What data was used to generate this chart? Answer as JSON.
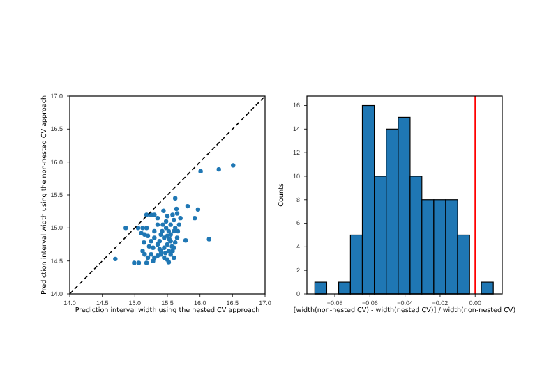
{
  "chart_data": [
    {
      "type": "scatter",
      "xlabel": "Prediction interval width using the nested CV approach",
      "ylabel": "Prediction interval width using the non-nested CV approach",
      "xlim": [
        14,
        17
      ],
      "ylim": [
        14,
        17
      ],
      "xticks": [
        {
          "value": 14,
          "label": "14.0"
        },
        {
          "value": 14.5,
          "label": "14.5"
        },
        {
          "value": 15,
          "label": "15.0"
        },
        {
          "value": 15.5,
          "label": "15.5"
        },
        {
          "value": 16,
          "label": "16.0"
        },
        {
          "value": 16.5,
          "label": "16.5"
        },
        {
          "value": 17,
          "label": "17.0"
        }
      ],
      "yticks": [
        {
          "value": 14,
          "label": "14.0"
        },
        {
          "value": 14.5,
          "label": "14.5"
        },
        {
          "value": 15,
          "label": "15.0"
        },
        {
          "value": 15.5,
          "label": "15.5"
        },
        {
          "value": 16,
          "label": "16.0"
        },
        {
          "value": 16.5,
          "label": "16.5"
        },
        {
          "value": 17,
          "label": "17.0"
        }
      ],
      "marker": "circle",
      "series": [
        {
          "type": "scatter",
          "color": "#1f77b4",
          "x": [
            16.51,
            16.29,
            16.01,
            15.62,
            15.81,
            15.97,
            15.64,
            15.44,
            15.92,
            14.86,
            16.14,
            15.78,
            14.7,
            14.99,
            15.06,
            15.18,
            15.18,
            15.25,
            15.3,
            15.35,
            15.5,
            15.58,
            15.6,
            15.55,
            15.48,
            15.52,
            15.1,
            15.15,
            15.2,
            15.3,
            15.35,
            15.4,
            15.45,
            15.5,
            15.55,
            15.55,
            15.5,
            15.45,
            15.4,
            15.35,
            15.28,
            15.22,
            15.12,
            15.15,
            15.2,
            15.25,
            15.3,
            15.35,
            15.4,
            15.45,
            15.5,
            15.52,
            15.55,
            15.58,
            15.6,
            15.62,
            15.65,
            15.6,
            15.62,
            15.68,
            15.7,
            15.65,
            15.25,
            15.3,
            15.38,
            15.42,
            15.05,
            15.12,
            15.18,
            15.28,
            15.6,
            15.52,
            15.47,
            15.57,
            15.53,
            15.43,
            15.48,
            15.38,
            15.66,
            15.14
          ],
          "values": [
            15.95,
            15.89,
            15.86,
            15.45,
            15.33,
            15.28,
            15.29,
            15.26,
            15.15,
            15.0,
            14.83,
            14.81,
            14.53,
            14.47,
            14.47,
            14.47,
            15.2,
            15.2,
            15.2,
            15.15,
            15.18,
            15.2,
            15.12,
            15.05,
            15.0,
            14.95,
            14.92,
            14.9,
            14.88,
            14.95,
            15.05,
            14.9,
            14.85,
            14.88,
            14.9,
            14.8,
            14.75,
            14.7,
            14.65,
            14.75,
            14.7,
            14.72,
            14.65,
            14.6,
            14.55,
            14.6,
            14.55,
            14.58,
            14.6,
            14.55,
            14.52,
            14.48,
            14.6,
            14.65,
            14.7,
            14.78,
            14.85,
            14.95,
            15.0,
            15.05,
            15.15,
            15.22,
            14.8,
            14.85,
            14.8,
            14.95,
            15.0,
            15.0,
            15.0,
            14.5,
            14.55,
            14.65,
            14.62,
            14.72,
            14.83,
            15.05,
            15.1,
            14.68,
            14.95,
            14.78
          ]
        },
        {
          "type": "line",
          "color": "#000000",
          "line_style": "dashed",
          "marker": "none",
          "x": [
            14,
            17
          ],
          "values": [
            14,
            17
          ]
        }
      ]
    },
    {
      "type": "histogram",
      "xlabel": "[width(non-nested CV) - width(nested CV)] / width(non-nested CV)",
      "ylabel": "Counts",
      "color": "#1f77b4",
      "bins": [
        -0.0914,
        -0.0846,
        -0.0778,
        -0.0711,
        -0.0643,
        -0.0575,
        -0.0507,
        -0.0439,
        -0.0371,
        -0.0304,
        -0.0236,
        -0.0168,
        -0.01,
        -0.0032,
        0.0035,
        0.0103
      ],
      "values": [
        1,
        0,
        1,
        5,
        16,
        10,
        14,
        15,
        10,
        8,
        8,
        8,
        5,
        0,
        1
      ],
      "xlim": [
        -0.0959,
        0.0154
      ],
      "ylim": [
        0,
        16.8
      ],
      "xticks": [
        {
          "value": -0.08,
          "label": "−0.08"
        },
        {
          "value": -0.06,
          "label": "−0.06"
        },
        {
          "value": -0.04,
          "label": "−0.04"
        },
        {
          "value": -0.02,
          "label": "−0.02"
        },
        {
          "value": 0,
          "label": "0.00"
        }
      ],
      "yticks": [
        0,
        2,
        4,
        6,
        8,
        10,
        12,
        14,
        16
      ],
      "ref_lines": [
        {
          "axis": "x",
          "value": 0,
          "color": "#ff0000"
        }
      ]
    }
  ]
}
